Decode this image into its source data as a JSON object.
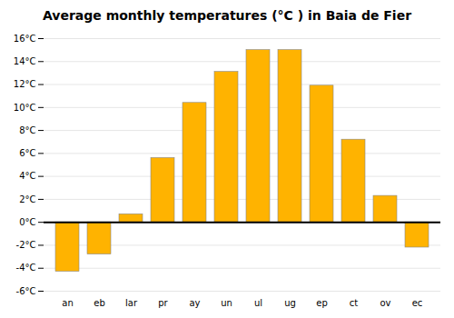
{
  "chart_data": {
    "type": "bar",
    "title": "Average monthly temperatures (°C ) in Baia de Fier",
    "categories": [
      "an",
      "eb",
      "lar",
      "pr",
      "ay",
      "un",
      "ul",
      "ug",
      "ep",
      "ct",
      "ov",
      "ec"
    ],
    "values": [
      -4.3,
      -2.8,
      0.7,
      5.6,
      10.4,
      13.1,
      15.0,
      15.0,
      11.9,
      7.2,
      2.3,
      -2.2
    ],
    "color": "#FFB300",
    "ylim": [
      -6,
      16
    ],
    "yticks": [
      {
        "value": -6,
        "label": "-6°C"
      },
      {
        "value": -4,
        "label": "-4°C"
      },
      {
        "value": -2,
        "label": "-2°C"
      },
      {
        "value": 0,
        "label": "0°C"
      },
      {
        "value": 2,
        "label": "2°C"
      },
      {
        "value": 4,
        "label": "4°C"
      },
      {
        "value": 6,
        "label": "6°C"
      },
      {
        "value": 8,
        "label": "8°C"
      },
      {
        "value": 10,
        "label": "10°C"
      },
      {
        "value": 12,
        "label": "12°C"
      },
      {
        "value": 14,
        "label": "14°C"
      },
      {
        "value": 16,
        "label": "16°C"
      }
    ],
    "grid": true
  }
}
